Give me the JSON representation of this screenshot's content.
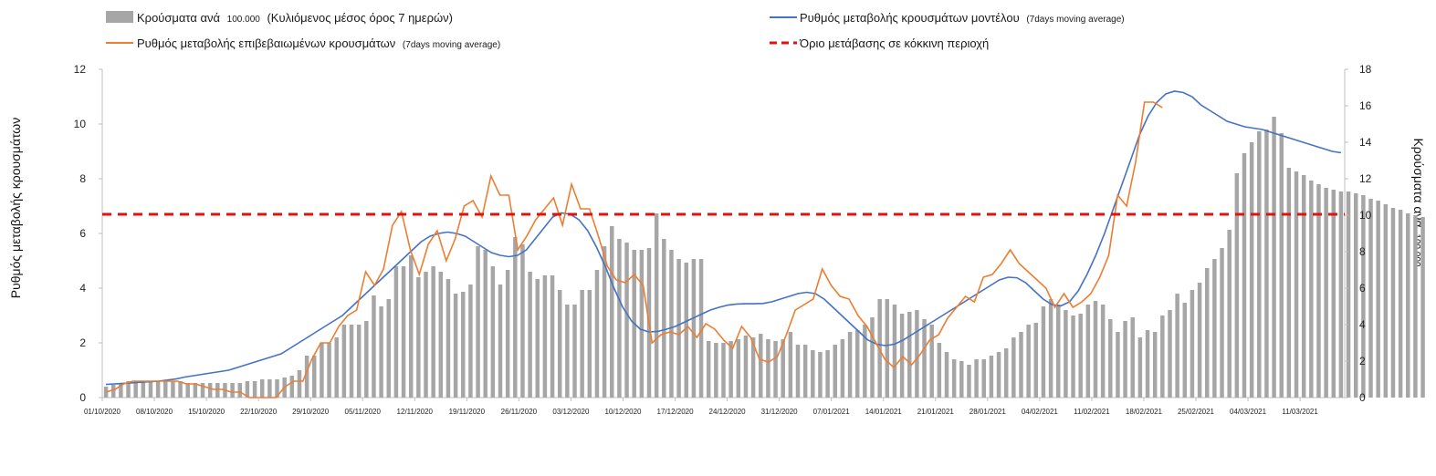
{
  "chart_data": {
    "type": "bar+line",
    "legend": {
      "bars_label": "Κρούσματα ανά",
      "bars_small": "100.000",
      "bars_label2": "(Κυλιόμενος μέσος όρος 7 ημερών)",
      "model_label": "Ρυθμός μεταβολής κρουσμάτων μοντέλου",
      "model_small": "(7days moving average)",
      "confirmed_label": "Ρυθμός μεταβολής επιβεβαιωμένων κρουσμάτων",
      "confirmed_small": "(7days moving average)",
      "threshold_label": "Όριο μετάβασης σε κόκκινη περιοχή"
    },
    "ylabel_left": "Ρυθμός μεταβολής κρουσμάτων",
    "ylabel_right": "Κρούσματα ανά",
    "ylabel_right_small": "100.000",
    "ylim_left": [
      0,
      12
    ],
    "yticks_left": [
      "0",
      "2",
      "4",
      "6",
      "8",
      "10",
      "12"
    ],
    "ylim_right": [
      0,
      18
    ],
    "yticks_right": [
      "0",
      "2",
      "4",
      "6",
      "8",
      "10",
      "12",
      "14",
      "16",
      "18"
    ],
    "x_tick_labels": [
      "01/10/2020",
      "08/10/2020",
      "15/10/2020",
      "22/10/2020",
      "29/10/2020",
      "05/11/2020",
      "12/11/2020",
      "19/11/2020",
      "26/11/2020",
      "03/12/2020",
      "10/12/2020",
      "17/12/2020",
      "24/12/2020",
      "31/12/2020",
      "07/01/2021",
      "14/01/2021",
      "21/01/2021",
      "28/01/2021",
      "04/02/2021",
      "11/02/2021",
      "18/02/2021",
      "25/02/2021",
      "04/03/2021",
      "11/03/2021"
    ],
    "colors": {
      "bars": "#a6a6a6",
      "model": "#4472c4",
      "confirmed": "#ed7d31",
      "threshold": "#e0120e"
    },
    "threshold_value": 6.7,
    "bars_per_100k": [
      0.6,
      0.7,
      0.8,
      0.9,
      0.9,
      0.9,
      0.9,
      0.9,
      0.9,
      0.9,
      0.9,
      0.8,
      0.8,
      0.8,
      0.8,
      0.8,
      0.8,
      0.8,
      0.8,
      0.9,
      0.9,
      1.0,
      1.0,
      1.0,
      1.1,
      1.2,
      1.5,
      2.3,
      2.3,
      3.0,
      3.0,
      3.3,
      4.0,
      4.0,
      4.0,
      4.2,
      5.6,
      5.0,
      5.4,
      7.2,
      7.2,
      7.8,
      6.6,
      6.9,
      7.2,
      6.9,
      6.5,
      5.7,
      5.8,
      6.2,
      8.3,
      8.1,
      7.2,
      6.2,
      7.0,
      8.8,
      8.4,
      6.9,
      6.5,
      6.7,
      6.7,
      5.9,
      5.1,
      5.1,
      5.9,
      5.9,
      7.0,
      8.3,
      9.4,
      8.7,
      8.5,
      8.1,
      8.1,
      8.2,
      10.1,
      8.7,
      8.1,
      7.6,
      7.4,
      7.6,
      7.6,
      3.1,
      3.0,
      3.0,
      3.1,
      3.2,
      3.4,
      3.3,
      3.5,
      3.2,
      3.1,
      3.2,
      3.6,
      2.9,
      2.9,
      2.6,
      2.5,
      2.6,
      2.9,
      3.2,
      3.6,
      3.7,
      4.0,
      4.4,
      5.4,
      5.4,
      5.1,
      4.6,
      4.7,
      4.8,
      4.3,
      4.0,
      3.0,
      2.5,
      2.1,
      2.0,
      1.8,
      2.1,
      2.1,
      2.3,
      2.5,
      2.7,
      3.3,
      3.6,
      4.0,
      4.1,
      5.0,
      5.4,
      5.1,
      4.8,
      4.5,
      4.6,
      5.1,
      5.3,
      5.1,
      4.3,
      3.6,
      4.2,
      4.4,
      3.3,
      3.7,
      3.6,
      4.5,
      4.8,
      5.7,
      5.2,
      5.9,
      6.3,
      7.1,
      7.6,
      8.2,
      9.2,
      12.3,
      13.4,
      14.0,
      14.6,
      14.7,
      15.4,
      14.5,
      12.6,
      12.4,
      12.2,
      11.9,
      11.7,
      11.5,
      11.4,
      11.3,
      11.3,
      11.2,
      11.1,
      10.9,
      10.8,
      10.6,
      10.4,
      10.3,
      10.1,
      10.0,
      9.9
    ],
    "model_rate": [
      0.48,
      0.5,
      0.52,
      0.54,
      0.56,
      0.58,
      0.6,
      0.64,
      0.68,
      0.75,
      0.8,
      0.85,
      0.9,
      0.95,
      1.0,
      1.1,
      1.2,
      1.3,
      1.4,
      1.5,
      1.6,
      1.8,
      2.0,
      2.2,
      2.4,
      2.6,
      2.8,
      3.0,
      3.3,
      3.6,
      3.9,
      4.2,
      4.5,
      4.8,
      5.1,
      5.4,
      5.7,
      5.9,
      6.0,
      6.05,
      6.0,
      5.9,
      5.7,
      5.5,
      5.3,
      5.2,
      5.15,
      5.2,
      5.4,
      5.8,
      6.2,
      6.6,
      6.75,
      6.7,
      6.5,
      6.1,
      5.5,
      4.8,
      4.0,
      3.3,
      2.8,
      2.5,
      2.4,
      2.42,
      2.5,
      2.6,
      2.75,
      2.9,
      3.05,
      3.2,
      3.3,
      3.38,
      3.42,
      3.43,
      3.43,
      3.44,
      3.5,
      3.6,
      3.7,
      3.8,
      3.85,
      3.8,
      3.6,
      3.3,
      3.0,
      2.7,
      2.4,
      2.1,
      1.95,
      1.9,
      1.95,
      2.1,
      2.3,
      2.5,
      2.7,
      2.9,
      3.1,
      3.3,
      3.5,
      3.7,
      3.9,
      4.1,
      4.3,
      4.4,
      4.38,
      4.2,
      3.9,
      3.6,
      3.4,
      3.35,
      3.5,
      3.9,
      4.5,
      5.2,
      6.0,
      6.9,
      7.8,
      8.7,
      9.6,
      10.3,
      10.8,
      11.1,
      11.2,
      11.15,
      11.0,
      10.7,
      10.5,
      10.3,
      10.1,
      10.0,
      9.9,
      9.85,
      9.8,
      9.7,
      9.6,
      9.5,
      9.4,
      9.3,
      9.2,
      9.1,
      9.0,
      8.95
    ],
    "confirmed_rate": [
      0.2,
      0.3,
      0.5,
      0.6,
      0.6,
      0.6,
      0.6,
      0.6,
      0.6,
      0.5,
      0.5,
      0.4,
      0.3,
      0.3,
      0.2,
      0.2,
      0.0,
      0.0,
      0.0,
      0.0,
      0.4,
      0.6,
      0.6,
      1.4,
      2.0,
      2.0,
      2.6,
      3.0,
      3.2,
      4.6,
      4.1,
      4.7,
      6.3,
      6.8,
      5.4,
      4.5,
      5.6,
      6.1,
      5.0,
      5.8,
      7.0,
      7.2,
      6.6,
      8.1,
      7.4,
      7.4,
      5.4,
      5.9,
      6.5,
      6.9,
      7.3,
      6.3,
      7.8,
      6.9,
      6.9,
      5.9,
      4.8,
      4.3,
      4.2,
      4.5,
      4.1,
      2.0,
      2.3,
      2.4,
      2.3,
      2.6,
      2.2,
      2.7,
      2.5,
      2.1,
      1.8,
      2.6,
      2.2,
      1.4,
      1.3,
      1.5,
      2.3,
      3.2,
      3.4,
      3.6,
      4.7,
      4.1,
      3.7,
      3.6,
      3.0,
      2.6,
      2.0,
      1.4,
      1.1,
      1.5,
      1.2,
      1.6,
      2.1,
      2.3,
      2.9,
      3.3,
      3.7,
      3.5,
      4.4,
      4.5,
      4.9,
      5.4,
      4.9,
      4.6,
      4.3,
      4.0,
      3.3,
      3.8,
      3.3,
      3.5,
      3.8,
      4.4,
      5.2,
      7.4,
      7.0,
      8.6,
      10.8,
      10.8,
      10.6
    ],
    "confirmed_rate_extra_note": ""
  }
}
